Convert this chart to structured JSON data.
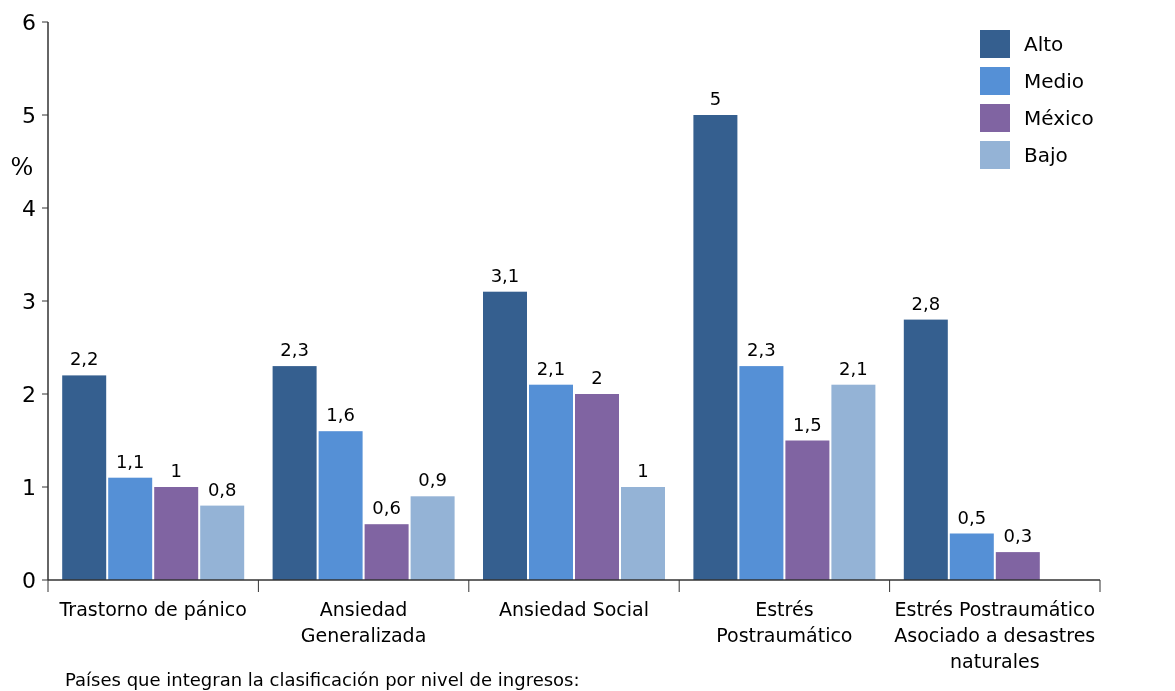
{
  "chart_data": {
    "type": "bar",
    "ylabel": "%",
    "categories": [
      "Trastorno de pánico",
      "Ansiedad\nGeneralizada",
      "Ansiedad Social",
      "Estrés\nPostraumático",
      "Estrés Postraumático\nAsociado a desastres\nnaturales"
    ],
    "series": [
      {
        "name": "Alto",
        "color": "#355f8f",
        "values": [
          2.2,
          2.3,
          3.1,
          5,
          2.8
        ],
        "value_labels": [
          "2,2",
          "2,3",
          "3,1",
          "5",
          "2,8"
        ]
      },
      {
        "name": "Medio",
        "color": "#5590d6",
        "values": [
          1.1,
          1.6,
          2.1,
          2.3,
          0.5
        ],
        "value_labels": [
          "1,1",
          "1,6",
          "2,1",
          "2,3",
          "0,5"
        ]
      },
      {
        "name": "México",
        "color": "#8064a2",
        "values": [
          1,
          0.6,
          2,
          1.5,
          0.3
        ],
        "value_labels": [
          "1",
          "0,6",
          "2",
          "1,5",
          "0,3"
        ]
      },
      {
        "name": "Bajo",
        "color": "#94b3d6",
        "values": [
          0.8,
          0.9,
          1,
          2.1,
          null
        ],
        "value_labels": [
          "0,8",
          "0,9",
          "1",
          "2,1",
          null
        ]
      }
    ],
    "ylim": [
      0,
      6
    ],
    "yticks": [
      0,
      1,
      2,
      3,
      4,
      5,
      6
    ],
    "legend": "top right",
    "annotations": [
      "Países que integran la clasificación por nivel de ingresos:"
    ]
  }
}
